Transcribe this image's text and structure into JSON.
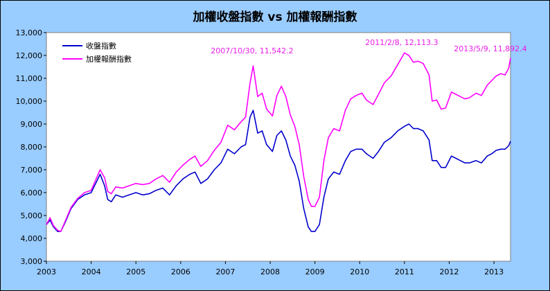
{
  "chart_data": {
    "type": "line",
    "title": "加權收盤指數 vs 加權報酬指數",
    "xlabel": "",
    "ylabel": "",
    "xlim": [
      2003.0,
      2013.37
    ],
    "ylim": [
      3000,
      13000
    ],
    "yticks": [
      3000,
      4000,
      5000,
      6000,
      7000,
      8000,
      9000,
      10000,
      11000,
      12000,
      13000
    ],
    "ytick_labels": [
      "3,000",
      "4,000",
      "5,000",
      "6,000",
      "7,000",
      "8,000",
      "9,000",
      "10,000",
      "11,000",
      "12,000",
      "13,000"
    ],
    "xticks": [
      2003,
      2004,
      2005,
      2006,
      2007,
      2008,
      2009,
      2010,
      2011,
      2012,
      2013
    ],
    "xtick_labels": [
      "2003",
      "2004",
      "2005",
      "2006",
      "2007",
      "2008",
      "2009",
      "2010",
      "2011",
      "2012",
      "2013"
    ],
    "grid": false,
    "legend": "top-left",
    "series": [
      {
        "name": "收盤指數",
        "color": "#0000cc",
        "x": [
          2003.0,
          2003.08,
          2003.16,
          2003.25,
          2003.32,
          2003.42,
          2003.55,
          2003.7,
          2003.85,
          2004.0,
          2004.1,
          2004.2,
          2004.3,
          2004.37,
          2004.45,
          2004.55,
          2004.7,
          2004.85,
          2005.0,
          2005.15,
          2005.3,
          2005.45,
          2005.6,
          2005.75,
          2005.9,
          2006.05,
          2006.2,
          2006.32,
          2006.45,
          2006.6,
          2006.75,
          2006.9,
          2007.05,
          2007.2,
          2007.35,
          2007.45,
          2007.55,
          2007.62,
          2007.72,
          2007.82,
          2007.92,
          2008.05,
          2008.15,
          2008.25,
          2008.35,
          2008.45,
          2008.55,
          2008.65,
          2008.75,
          2008.85,
          2008.92,
          2009.0,
          2009.1,
          2009.2,
          2009.3,
          2009.42,
          2009.55,
          2009.68,
          2009.8,
          2009.92,
          2010.05,
          2010.15,
          2010.3,
          2010.42,
          2010.55,
          2010.7,
          2010.85,
          2011.0,
          2011.1,
          2011.2,
          2011.3,
          2011.42,
          2011.55,
          2011.62,
          2011.72,
          2011.82,
          2011.92,
          2012.05,
          2012.15,
          2012.25,
          2012.35,
          2012.45,
          2012.6,
          2012.72,
          2012.85,
          2012.95,
          2013.05,
          2013.15,
          2013.25,
          2013.33,
          2013.37
        ],
        "y": [
          4600,
          4800,
          4500,
          4300,
          4300,
          4700,
          5300,
          5700,
          5900,
          6000,
          6400,
          6800,
          6300,
          5700,
          5600,
          5900,
          5800,
          5900,
          6000,
          5900,
          5950,
          6100,
          6200,
          5900,
          6300,
          6600,
          6800,
          6900,
          6400,
          6600,
          7000,
          7300,
          7900,
          7700,
          8000,
          8100,
          9300,
          9600,
          8600,
          8700,
          8100,
          7800,
          8500,
          8700,
          8300,
          7600,
          7200,
          6500,
          5300,
          4500,
          4300,
          4300,
          4600,
          5800,
          6600,
          6900,
          6800,
          7400,
          7800,
          7900,
          7900,
          7700,
          7500,
          7800,
          8200,
          8400,
          8700,
          8900,
          9000,
          8800,
          8800,
          8700,
          8300,
          7400,
          7400,
          7100,
          7100,
          7600,
          7500,
          7400,
          7300,
          7300,
          7400,
          7300,
          7600,
          7700,
          7850,
          7900,
          7900,
          8050,
          8250
        ]
      },
      {
        "name": "加權報酬指數",
        "color": "#ff00ff",
        "x": [
          2003.0,
          2003.08,
          2003.16,
          2003.25,
          2003.32,
          2003.42,
          2003.55,
          2003.7,
          2003.85,
          2004.0,
          2004.1,
          2004.2,
          2004.3,
          2004.37,
          2004.45,
          2004.55,
          2004.7,
          2004.85,
          2005.0,
          2005.15,
          2005.3,
          2005.45,
          2005.6,
          2005.75,
          2005.9,
          2006.05,
          2006.2,
          2006.32,
          2006.45,
          2006.6,
          2006.75,
          2006.9,
          2007.05,
          2007.2,
          2007.35,
          2007.45,
          2007.55,
          2007.62,
          2007.72,
          2007.82,
          2007.92,
          2008.05,
          2008.15,
          2008.25,
          2008.35,
          2008.45,
          2008.55,
          2008.65,
          2008.75,
          2008.85,
          2008.92,
          2009.0,
          2009.1,
          2009.2,
          2009.3,
          2009.42,
          2009.55,
          2009.68,
          2009.8,
          2009.92,
          2010.05,
          2010.15,
          2010.3,
          2010.42,
          2010.55,
          2010.7,
          2010.85,
          2011.0,
          2011.1,
          2011.2,
          2011.3,
          2011.42,
          2011.55,
          2011.62,
          2011.72,
          2011.82,
          2011.92,
          2012.05,
          2012.15,
          2012.25,
          2012.35,
          2012.45,
          2012.6,
          2012.72,
          2012.85,
          2012.95,
          2013.05,
          2013.15,
          2013.25,
          2013.33,
          2013.37
        ],
        "y": [
          4600,
          4900,
          4550,
          4350,
          4300,
          4750,
          5350,
          5750,
          6000,
          6100,
          6550,
          7000,
          6650,
          6050,
          5950,
          6250,
          6200,
          6300,
          6400,
          6350,
          6400,
          6600,
          6750,
          6450,
          6900,
          7200,
          7450,
          7600,
          7150,
          7400,
          7850,
          8200,
          8950,
          8750,
          9100,
          9300,
          10800,
          11542,
          10200,
          10350,
          9650,
          9350,
          10250,
          10650,
          10200,
          9400,
          8900,
          8100,
          6700,
          5700,
          5400,
          5400,
          5800,
          7400,
          8400,
          8800,
          8700,
          9600,
          10100,
          10250,
          10350,
          10050,
          9850,
          10300,
          10800,
          11100,
          11600,
          12113,
          12000,
          11700,
          11750,
          11650,
          11150,
          10000,
          10050,
          9650,
          9700,
          10400,
          10300,
          10200,
          10100,
          10150,
          10350,
          10250,
          10700,
          10900,
          11100,
          11200,
          11150,
          11450,
          11892
        ]
      }
    ],
    "legend_entries": [
      "收盤指數",
      "加權報酬指數"
    ],
    "annotations": [
      {
        "text": "2007/10/30, 11,542.2",
        "x": 2007.83,
        "y": 11542.2
      },
      {
        "text": "2011/2/8, 12,113.3",
        "x": 2011.1,
        "y": 12113.3
      },
      {
        "text": "2013/5/9, 11,892.4",
        "x": 2013.36,
        "y": 11892.4
      }
    ]
  }
}
